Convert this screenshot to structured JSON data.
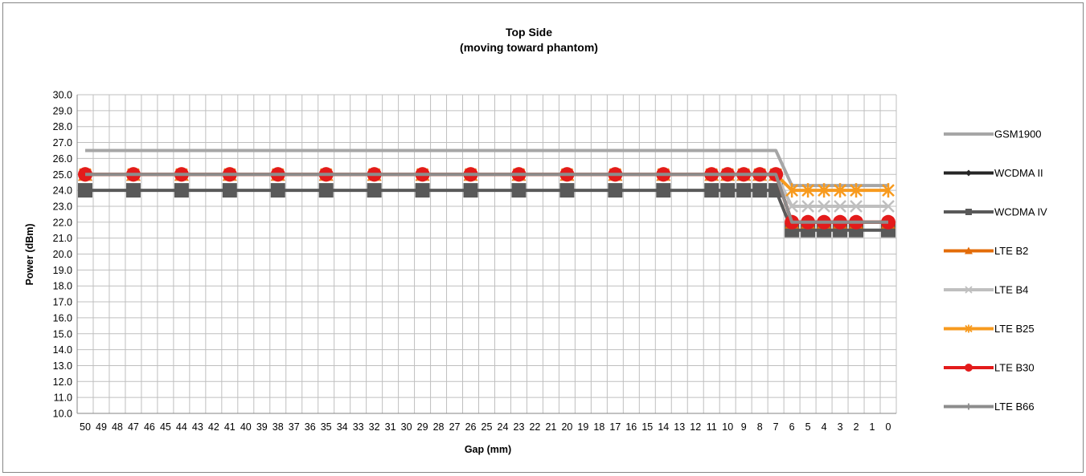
{
  "chart_data": {
    "type": "line",
    "title": "Top Side",
    "subtitle": "(moving toward phantom)",
    "xlabel": "Gap (mm)",
    "ylabel": "Power (dBm)",
    "x": [
      50,
      49,
      48,
      47,
      46,
      45,
      44,
      43,
      42,
      41,
      40,
      39,
      38,
      37,
      36,
      35,
      34,
      33,
      32,
      31,
      30,
      29,
      28,
      27,
      26,
      25,
      24,
      23,
      22,
      21,
      20,
      19,
      18,
      17,
      16,
      15,
      14,
      13,
      12,
      11,
      10,
      9,
      8,
      7,
      6,
      5,
      4,
      3,
      2,
      1,
      0
    ],
    "ylim": [
      10.0,
      30.0
    ],
    "ytick_step": 1.0,
    "grid": true,
    "legend_position": "right",
    "series": [
      {
        "name": "GSM1900",
        "color": "#a6a6a6",
        "marker": "none",
        "line_width": 4,
        "points": [
          [
            50,
            26.5
          ],
          [
            7,
            26.5
          ],
          [
            6,
            24.3
          ],
          [
            0,
            24.3
          ]
        ]
      },
      {
        "name": "WCDMA II",
        "color": "#262626",
        "marker": "diamond",
        "line_width": 4,
        "points": [
          [
            50,
            25.0
          ],
          [
            7,
            25.0
          ],
          [
            6,
            22.0
          ],
          [
            0,
            22.0
          ]
        ]
      },
      {
        "name": "WCDMA IV",
        "color": "#595959",
        "marker": "square",
        "line_width": 4,
        "points": [
          [
            50,
            24.0
          ],
          [
            47,
            24.0
          ],
          [
            44,
            24.0
          ],
          [
            41,
            24.0
          ],
          [
            38,
            24.0
          ],
          [
            35,
            24.0
          ],
          [
            32,
            24.0
          ],
          [
            29,
            24.0
          ],
          [
            26,
            24.0
          ],
          [
            23,
            24.0
          ],
          [
            20,
            24.0
          ],
          [
            17,
            24.0
          ],
          [
            14,
            24.0
          ],
          [
            11,
            24.0
          ],
          [
            10,
            24.0
          ],
          [
            9,
            24.0
          ],
          [
            8,
            24.0
          ],
          [
            7,
            24.0
          ],
          [
            6,
            21.5
          ],
          [
            5,
            21.5
          ],
          [
            4,
            21.5
          ],
          [
            3,
            21.5
          ],
          [
            2,
            21.5
          ],
          [
            0,
            21.5
          ]
        ]
      },
      {
        "name": "LTE B2",
        "color": "#e36c09",
        "marker": "triangle",
        "line_width": 4,
        "points": [
          [
            50,
            25.0
          ],
          [
            47,
            25.0
          ],
          [
            44,
            25.0
          ],
          [
            41,
            25.0
          ],
          [
            38,
            25.0
          ],
          [
            35,
            25.0
          ],
          [
            32,
            25.0
          ],
          [
            29,
            25.0
          ],
          [
            26,
            25.0
          ],
          [
            23,
            25.0
          ],
          [
            20,
            25.0
          ],
          [
            17,
            25.0
          ],
          [
            14,
            25.0
          ],
          [
            11,
            25.0
          ],
          [
            10,
            25.0
          ],
          [
            9,
            25.0
          ],
          [
            8,
            25.0
          ],
          [
            7,
            25.0
          ],
          [
            6,
            22.0
          ],
          [
            5,
            22.0
          ],
          [
            4,
            22.0
          ],
          [
            3,
            22.0
          ],
          [
            2,
            22.0
          ],
          [
            0,
            22.0
          ]
        ]
      },
      {
        "name": "LTE B4",
        "color": "#bfbfbf",
        "marker": "x",
        "line_width": 4,
        "points": [
          [
            50,
            25.0
          ],
          [
            47,
            25.0
          ],
          [
            44,
            25.0
          ],
          [
            41,
            25.0
          ],
          [
            38,
            25.0
          ],
          [
            35,
            25.0
          ],
          [
            32,
            25.0
          ],
          [
            29,
            25.0
          ],
          [
            26,
            25.0
          ],
          [
            23,
            25.0
          ],
          [
            20,
            25.0
          ],
          [
            17,
            25.0
          ],
          [
            14,
            25.0
          ],
          [
            11,
            25.0
          ],
          [
            10,
            25.0
          ],
          [
            9,
            25.0
          ],
          [
            8,
            25.0
          ],
          [
            7,
            25.0
          ],
          [
            6,
            23.0
          ],
          [
            5,
            23.0
          ],
          [
            4,
            23.0
          ],
          [
            3,
            23.0
          ],
          [
            2,
            23.0
          ],
          [
            0,
            23.0
          ]
        ]
      },
      {
        "name": "LTE B25",
        "color": "#f79a1e",
        "marker": "star",
        "line_width": 4,
        "points": [
          [
            50,
            25.0
          ],
          [
            47,
            25.0
          ],
          [
            44,
            25.0
          ],
          [
            41,
            25.0
          ],
          [
            38,
            25.0
          ],
          [
            35,
            25.0
          ],
          [
            32,
            25.0
          ],
          [
            29,
            25.0
          ],
          [
            26,
            25.0
          ],
          [
            23,
            25.0
          ],
          [
            20,
            25.0
          ],
          [
            17,
            25.0
          ],
          [
            14,
            25.0
          ],
          [
            11,
            25.0
          ],
          [
            10,
            25.0
          ],
          [
            9,
            25.0
          ],
          [
            8,
            25.0
          ],
          [
            7,
            25.0
          ],
          [
            6,
            24.0
          ],
          [
            5,
            24.0
          ],
          [
            4,
            24.0
          ],
          [
            3,
            24.0
          ],
          [
            2,
            24.0
          ],
          [
            0,
            24.0
          ]
        ]
      },
      {
        "name": "LTE B30",
        "color": "#e31b1b",
        "marker": "circle",
        "line_width": 4,
        "points": [
          [
            50,
            25.0
          ],
          [
            47,
            25.0
          ],
          [
            44,
            25.0
          ],
          [
            41,
            25.0
          ],
          [
            38,
            25.0
          ],
          [
            35,
            25.0
          ],
          [
            32,
            25.0
          ],
          [
            29,
            25.0
          ],
          [
            26,
            25.0
          ],
          [
            23,
            25.0
          ],
          [
            20,
            25.0
          ],
          [
            17,
            25.0
          ],
          [
            14,
            25.0
          ],
          [
            11,
            25.0
          ],
          [
            10,
            25.0
          ],
          [
            9,
            25.0
          ],
          [
            8,
            25.0
          ],
          [
            7,
            25.0
          ],
          [
            6,
            22.0
          ],
          [
            5,
            22.0
          ],
          [
            4,
            22.0
          ],
          [
            3,
            22.0
          ],
          [
            2,
            22.0
          ],
          [
            0,
            22.0
          ]
        ]
      },
      {
        "name": "LTE B66",
        "color": "#8c8c8c",
        "marker": "plus",
        "line_width": 4,
        "points": [
          [
            50,
            25.0
          ],
          [
            7,
            25.0
          ],
          [
            6,
            22.0
          ],
          [
            0,
            22.0
          ]
        ]
      }
    ]
  }
}
